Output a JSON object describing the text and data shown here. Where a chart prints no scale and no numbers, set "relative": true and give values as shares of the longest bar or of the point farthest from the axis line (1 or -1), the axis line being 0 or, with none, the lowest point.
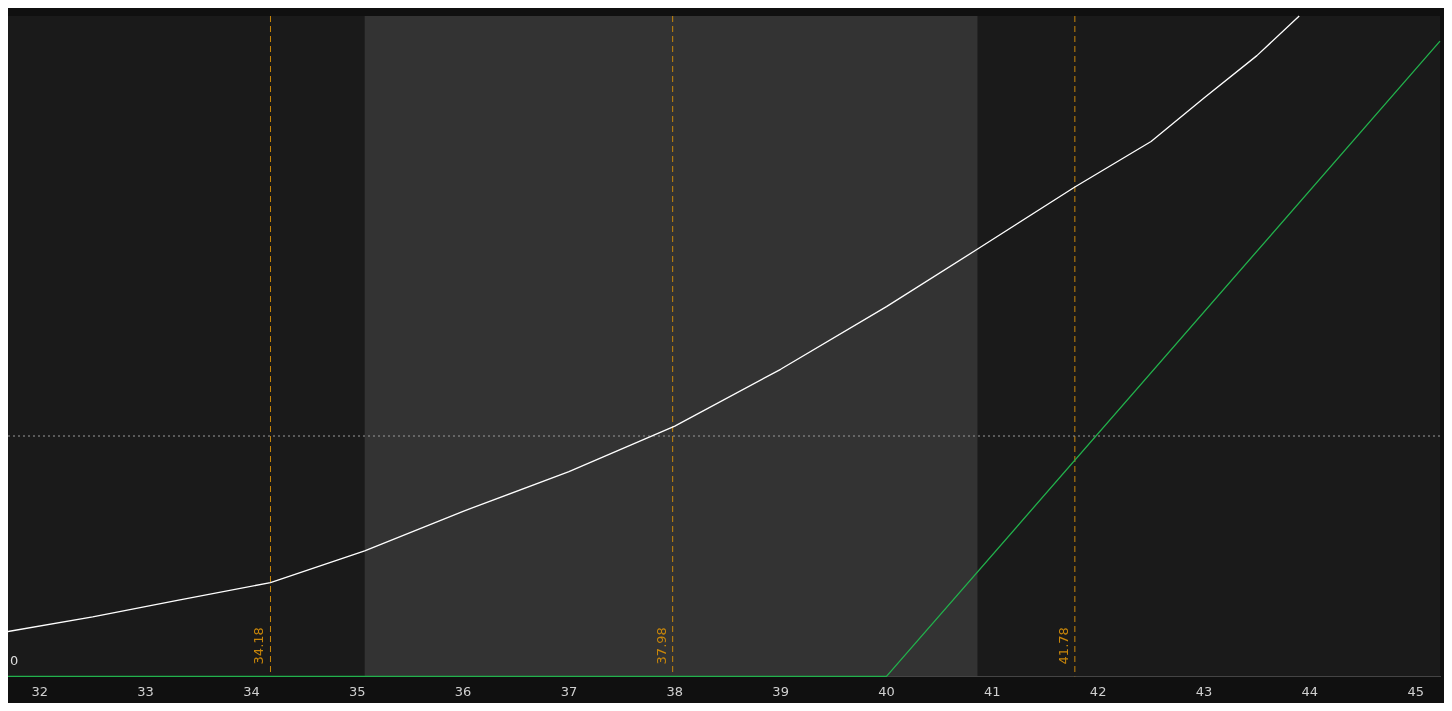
{
  "chart_data": {
    "type": "line",
    "relative": true,
    "xlim": [
      31.7,
      45.23
    ],
    "xticks": [
      32,
      33,
      34,
      35,
      36,
      37,
      38,
      39,
      40,
      41,
      42,
      43,
      44,
      45
    ],
    "series": [
      {
        "color": "#ffffff",
        "x": [
          31.7,
          32.5,
          33.3,
          34.18,
          35.07,
          36,
          37,
          38,
          39,
          40,
          40.85,
          41.78,
          42.5,
          43,
          43.5,
          43.9
        ],
        "values": [
          0.068,
          0.09,
          0.115,
          0.142,
          0.19,
          0.25,
          0.31,
          0.379,
          0.465,
          0.56,
          0.646,
          0.741,
          0.81,
          0.876,
          0.94,
          1.0
        ]
      },
      {
        "color": "#22b14c",
        "x": [
          31.7,
          40.0,
          45.23
        ],
        "values": [
          0,
          0,
          0.962
        ]
      }
    ],
    "ref_lines": [
      {
        "axis": "x",
        "value": 34.18,
        "label": "34.18",
        "color": "#c8860a",
        "line_style": "dashed"
      },
      {
        "axis": "x",
        "value": 37.98,
        "label": "37.98",
        "color": "#c8860a",
        "line_style": "dashed"
      },
      {
        "axis": "x",
        "value": 41.78,
        "label": "41.78",
        "color": "#c8860a",
        "line_style": "dashed"
      },
      {
        "axis": "y",
        "value": 0.364,
        "color": "#999999",
        "line_style": "dotted"
      }
    ],
    "bands": [
      {
        "axis": "x",
        "from": 35.07,
        "to": 40.86,
        "color": "#333333"
      }
    ],
    "annotations": [
      {
        "text": "0",
        "x": 31.7,
        "y": 0
      }
    ],
    "grid": false,
    "legend": false,
    "marker": "none",
    "line_style": "solid"
  }
}
